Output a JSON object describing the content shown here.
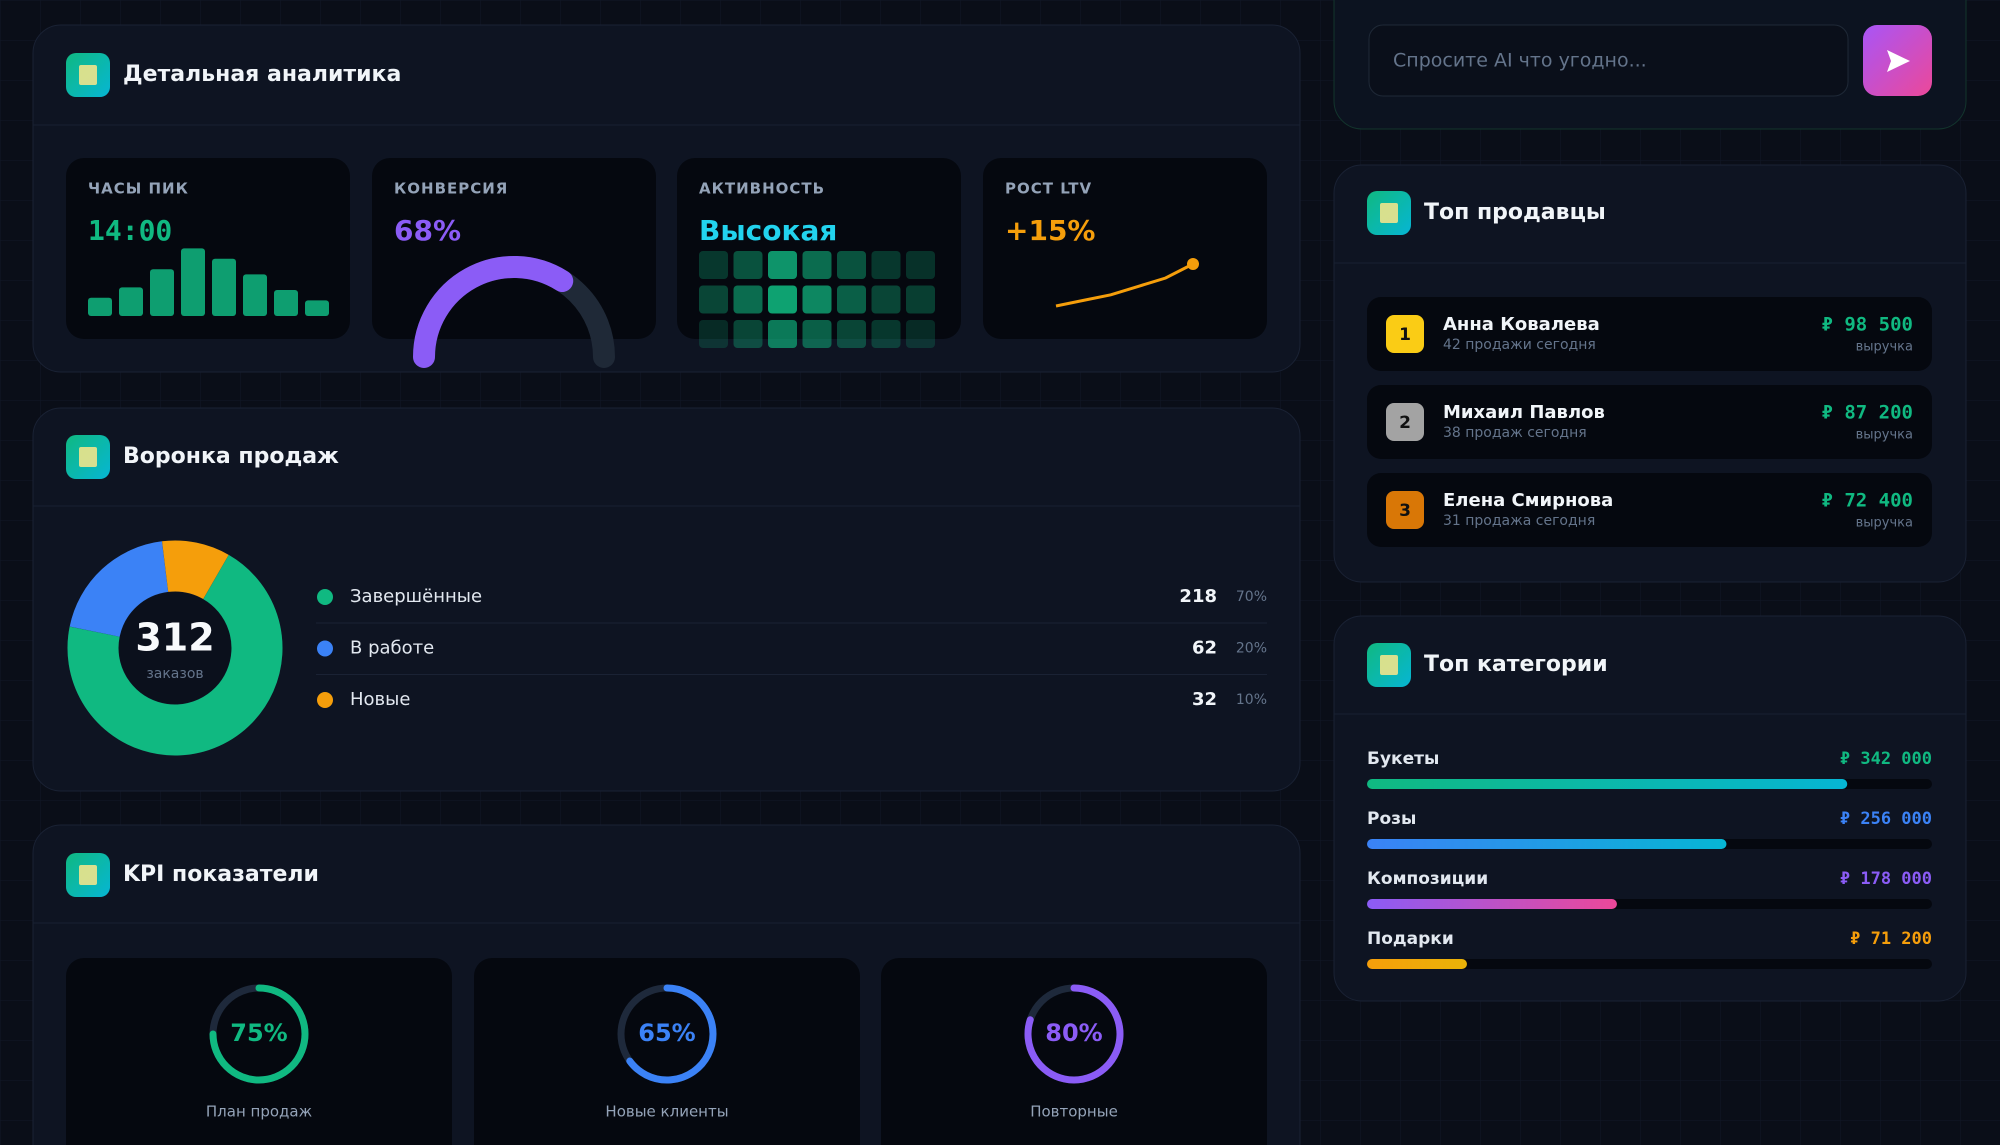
{
  "ai": {
    "placeholder": "Спросите AI что угодно..."
  },
  "analytics": {
    "title": "Детальная аналитика",
    "peak_hours": {
      "label": "ЧАСЫ ПИК",
      "value": "14:00",
      "bars": [
        14,
        22,
        36,
        52,
        44,
        32,
        20,
        12
      ],
      "color": "#10b981"
    },
    "conversion": {
      "label": "КОНВЕРСИЯ",
      "value": {
        "value": 68,
        "label": "68%"
      },
      "color": "#8b5cf6"
    },
    "activity": {
      "label": "АКТИВНОСТЬ",
      "value": "Высокая",
      "heat": [
        [
          0.2,
          0.4,
          0.9,
          0.6,
          0.4,
          0.2,
          0.15
        ],
        [
          0.3,
          0.6,
          1,
          0.8,
          0.5,
          0.3,
          0.25
        ],
        [
          0.1,
          0.3,
          0.7,
          0.5,
          0.3,
          0.2,
          0.1
        ]
      ],
      "color": "#10b981"
    },
    "ltv": {
      "label": "РОСТ LTV",
      "value": "+15%",
      "line": [
        0,
        2,
        4,
        7,
        10,
        15
      ],
      "color": "#f59e0b"
    }
  },
  "funnel": {
    "title": "Воронка продаж",
    "total": 312,
    "total_label": "заказов",
    "segments": [
      {
        "name": "Завершённые",
        "value": 218,
        "share": {
          "value": 70,
          "label": "70%"
        },
        "color": "#10b981"
      },
      {
        "name": "В работе",
        "value": 62,
        "share": {
          "value": 20,
          "label": "20%"
        },
        "color": "#3b82f6"
      },
      {
        "name": "Новые",
        "value": 32,
        "share": {
          "value": 10,
          "label": "10%"
        },
        "color": "#f59e0b"
      }
    ]
  },
  "kpi": {
    "title": "KPI показатели",
    "items": [
      {
        "value": {
          "value": 75,
          "label": "75%"
        },
        "label": "План продаж",
        "color": "#10b981"
      },
      {
        "value": {
          "value": 65,
          "label": "65%"
        },
        "label": "Новые клиенты",
        "color": "#3b82f6"
      },
      {
        "value": {
          "value": 80,
          "label": "80%"
        },
        "label": "Повторные",
        "color": "#8b5cf6"
      }
    ]
  },
  "sellers": {
    "title": "Топ продавцы",
    "rows": [
      {
        "rank": 1,
        "name": "Анна Ковалева",
        "sub": "42 продажи сегодня",
        "revenue": {
          "value": 98500,
          "label": "₽ 98 500"
        },
        "revenue_caption": "выручка",
        "color": "#facc15"
      },
      {
        "rank": 2,
        "name": "Михаил Павлов",
        "sub": "38 продаж сегодня",
        "revenue": {
          "value": 87200,
          "label": "₽ 87 200"
        },
        "revenue_caption": "выручка",
        "color": "#a3a3a3"
      },
      {
        "rank": 3,
        "name": "Елена Смирнова",
        "sub": "31 продажа сегодня",
        "revenue": {
          "value": 72400,
          "label": "₽ 72 400"
        },
        "revenue_caption": "выручка",
        "color": "#d97706"
      }
    ]
  },
  "categories": {
    "title": "Топ категории",
    "items": [
      {
        "name": "Букеты",
        "value": {
          "value": 342000,
          "label": "₽ 342 000"
        },
        "color": [
          "#10b981",
          "#06b6d4"
        ]
      },
      {
        "name": "Розы",
        "value": {
          "value": 256000,
          "label": "₽ 256 000"
        },
        "color": [
          "#3b82f6",
          "#06b6d4"
        ]
      },
      {
        "name": "Композиции",
        "value": {
          "value": 178000,
          "label": "₽ 178 000"
        },
        "color": [
          "#8b5cf6",
          "#ec4899"
        ]
      },
      {
        "name": "Подарки",
        "value": {
          "value": 71200,
          "label": "₽ 71 200"
        },
        "color": [
          "#f59e0b",
          "#eab308"
        ]
      }
    ]
  }
}
